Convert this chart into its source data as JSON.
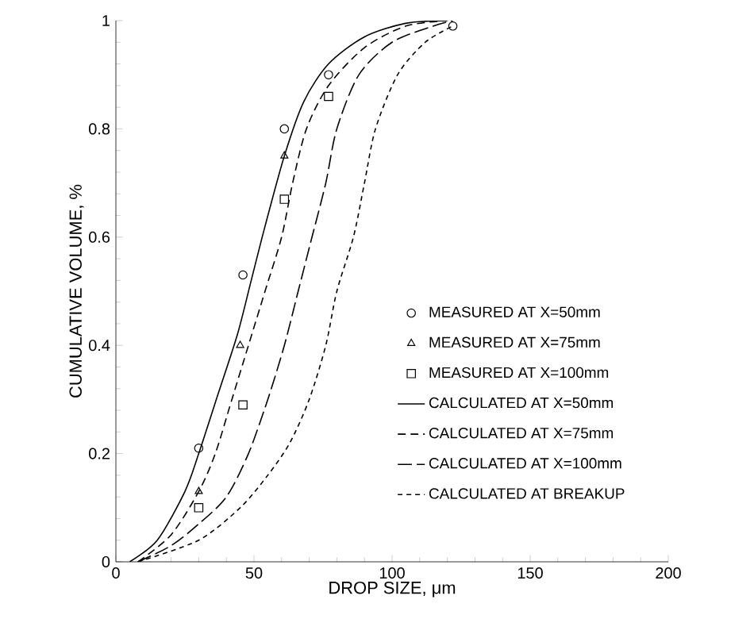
{
  "chart_data": {
    "type": "line",
    "xlabel": "DROP SIZE, μm",
    "ylabel": "CUMULATIVE VOLUME, %",
    "xlim": [
      0,
      200
    ],
    "ylim": [
      0,
      1
    ],
    "xticks": [
      0,
      50,
      100,
      150,
      200
    ],
    "yticks": [
      0,
      0.2,
      0.4,
      0.6,
      0.8,
      1
    ],
    "grid": false,
    "legend": "right",
    "series": [
      {
        "name": "MEASURED AT X=50mm",
        "type": "scatter",
        "marker": "circle",
        "color": "#000000",
        "x": [
          30,
          46,
          61,
          77,
          122
        ],
        "values": [
          0.21,
          0.53,
          0.8,
          0.9,
          0.99
        ]
      },
      {
        "name": "MEASURED AT X=75mm",
        "type": "scatter",
        "marker": "triangle",
        "color": "#000000",
        "x": [
          30,
          45,
          61
        ],
        "values": [
          0.13,
          0.4,
          0.75
        ]
      },
      {
        "name": "MEASURED AT X=100mm",
        "type": "scatter",
        "marker": "square",
        "color": "#000000",
        "x": [
          30,
          46,
          61,
          77
        ],
        "values": [
          0.1,
          0.29,
          0.67,
          0.86
        ]
      },
      {
        "name": "CALCULATED AT X=50mm",
        "line_style": "solid",
        "color": "#000000",
        "x": [
          5,
          15,
          25,
          30,
          37,
          44,
          49,
          54,
          61,
          68,
          77,
          90,
          105,
          120
        ],
        "values": [
          0,
          0.04,
          0.13,
          0.2,
          0.31,
          0.42,
          0.52,
          0.62,
          0.75,
          0.85,
          0.92,
          0.97,
          0.995,
          1.0
        ]
      },
      {
        "name": "CALCULATED AT X=75mm",
        "line_style": "dashed",
        "color": "#000000",
        "x": [
          8,
          20,
          30,
          36,
          42,
          48,
          54,
          60,
          64,
          69,
          77,
          90,
          105,
          120
        ],
        "values": [
          0,
          0.05,
          0.13,
          0.2,
          0.3,
          0.4,
          0.5,
          0.6,
          0.7,
          0.8,
          0.88,
          0.95,
          0.99,
          1.0
        ]
      },
      {
        "name": "CALCULATED AT X=100mm",
        "line_style": "dashed",
        "color": "#000000",
        "x": [
          8,
          20,
          30,
          40,
          48,
          55,
          61,
          66,
          71,
          76,
          80,
          88,
          100,
          115,
          122
        ],
        "values": [
          0,
          0.03,
          0.07,
          0.12,
          0.2,
          0.3,
          0.4,
          0.5,
          0.6,
          0.7,
          0.8,
          0.9,
          0.96,
          0.99,
          1.0
        ]
      },
      {
        "name": "CALCULATED AT BREAKUP",
        "line_style": "dashed",
        "color": "#000000",
        "x": [
          8,
          30,
          45,
          55,
          63,
          70,
          76,
          80,
          86,
          90,
          94,
          102,
          112,
          122
        ],
        "values": [
          0,
          0.04,
          0.1,
          0.16,
          0.22,
          0.3,
          0.4,
          0.5,
          0.6,
          0.7,
          0.8,
          0.9,
          0.96,
          0.99
        ]
      }
    ]
  }
}
